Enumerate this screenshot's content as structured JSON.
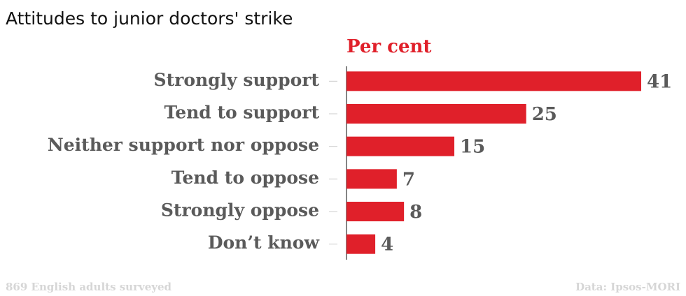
{
  "chart_data": {
    "type": "bar",
    "orientation": "horizontal",
    "title": "Attitudes to junior doctors' strike",
    "x_label": "Per cent",
    "categories": [
      "Strongly support",
      "Tend to support",
      "Neither support nor oppose",
      "Tend to oppose",
      "Strongly oppose",
      "Don’t know"
    ],
    "values": [
      41,
      25,
      15,
      7,
      8,
      4
    ],
    "color": "#e0202a",
    "xlim": [
      0,
      41
    ],
    "note": "869 English adults surveyed",
    "source": "Data: Ipsos-MORI"
  }
}
